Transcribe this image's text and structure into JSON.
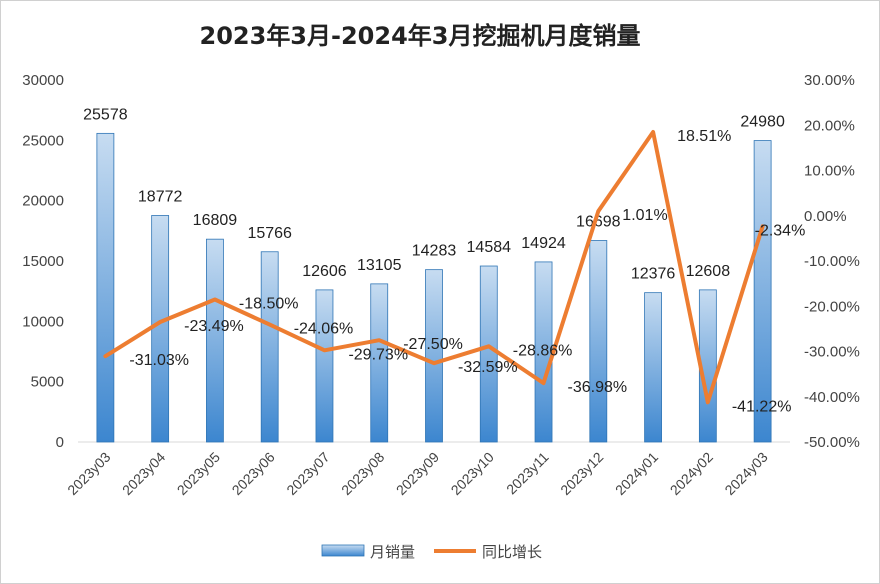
{
  "chart_data": {
    "type": "bar",
    "title": "2023年3月-2024年3月挖掘机月度销量",
    "categories": [
      "2023y03",
      "2023y04",
      "2023y05",
      "2023y06",
      "2023y07",
      "2023y08",
      "2023y09",
      "2023y10",
      "2023y11",
      "2023y12",
      "2024y01",
      "2024y02",
      "2024y03"
    ],
    "series": [
      {
        "name": "月销量",
        "type": "bar",
        "axis": "left",
        "values": [
          25578,
          18772,
          16809,
          15766,
          12606,
          13105,
          14283,
          14584,
          14924,
          16698,
          12376,
          12608,
          24980
        ],
        "labels": [
          "25578",
          "18772",
          "16809",
          "15766",
          "12606",
          "13105",
          "14283",
          "14584",
          "14924",
          "16698",
          "12376",
          "12608",
          "24980"
        ]
      },
      {
        "name": "同比增长",
        "type": "line",
        "axis": "right",
        "values": [
          -31.03,
          -23.49,
          -18.5,
          -24.06,
          -29.73,
          -27.5,
          -32.59,
          -28.86,
          -36.98,
          1.01,
          18.51,
          -41.22,
          -2.34
        ],
        "labels": [
          "-31.03%",
          "-23.49%",
          "-18.50%",
          "-24.06%",
          "-29.73%",
          "-27.50%",
          "-32.59%",
          "-28.86%",
          "-36.98%",
          "1.01%",
          "18.51%",
          "-41.22%",
          "-2.34%"
        ]
      }
    ],
    "y_left": {
      "min": 0,
      "max": 30000,
      "ticks": [
        "0",
        "5000",
        "10000",
        "15000",
        "20000",
        "25000",
        "30000"
      ]
    },
    "y_right": {
      "min": -50,
      "max": 30,
      "ticks": [
        "-50.00%",
        "-40.00%",
        "-30.00%",
        "-20.00%",
        "-10.00%",
        "0.00%",
        "10.00%",
        "20.00%",
        "30.00%"
      ]
    },
    "legend_position": "bottom",
    "grid": false,
    "colors": {
      "bar_top": "#c7dcf1",
      "bar_bottom": "#3c86cf",
      "bar_edge": "#2f75b5",
      "line": "#ed7d31"
    }
  }
}
